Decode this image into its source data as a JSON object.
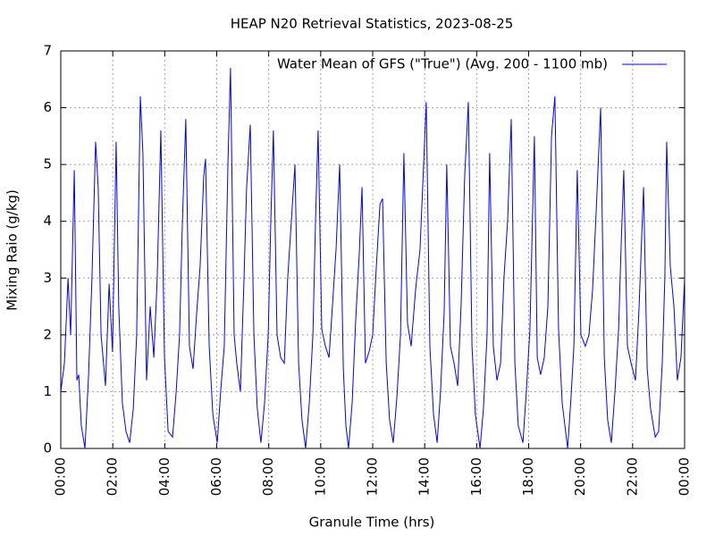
{
  "chart_data": {
    "type": "line",
    "title": "HEAP N20 Retrieval Statistics, 2023-08-25",
    "x_label": "Granule Time (hrs)",
    "y_label": "Mixing Raio (g/kg)",
    "xlim": [
      0,
      24
    ],
    "xticks": [
      {
        "value": 0,
        "label": "00:00"
      },
      {
        "value": 2,
        "label": "02:00"
      },
      {
        "value": 4,
        "label": "04:00"
      },
      {
        "value": 6,
        "label": "06:00"
      },
      {
        "value": 8,
        "label": "08:00"
      },
      {
        "value": 10,
        "label": "10:00"
      },
      {
        "value": 12,
        "label": "12:00"
      },
      {
        "value": 14,
        "label": "14:00"
      },
      {
        "value": 16,
        "label": "16:00"
      },
      {
        "value": 18,
        "label": "18:00"
      },
      {
        "value": 20,
        "label": "20:00"
      },
      {
        "value": 22,
        "label": "22:00"
      },
      {
        "value": 24,
        "label": "00:00"
      }
    ],
    "ylim": [
      0,
      7
    ],
    "yticks": [
      0,
      1,
      2,
      3,
      4,
      5,
      6,
      7
    ],
    "grid": true,
    "legend": "top-right",
    "x": [
      0.0,
      0.14,
      0.28,
      0.38,
      0.52,
      0.62,
      0.69,
      0.79,
      0.93,
      1.07,
      1.2,
      1.34,
      1.44,
      1.55,
      1.72,
      1.86,
      1.99,
      2.13,
      2.23,
      2.37,
      2.51,
      2.65,
      2.79,
      2.92,
      3.06,
      3.16,
      3.3,
      3.44,
      3.58,
      3.71,
      3.85,
      3.99,
      4.13,
      4.3,
      4.44,
      4.57,
      4.68,
      4.81,
      4.95,
      5.09,
      5.23,
      5.36,
      5.5,
      5.57,
      5.71,
      5.85,
      6.02,
      6.15,
      6.29,
      6.43,
      6.53,
      6.67,
      6.77,
      6.91,
      7.05,
      7.15,
      7.29,
      7.43,
      7.56,
      7.7,
      7.84,
      7.98,
      8.08,
      8.18,
      8.32,
      8.46,
      8.6,
      8.73,
      8.87,
      9.01,
      9.15,
      9.28,
      9.42,
      9.56,
      9.7,
      9.8,
      9.9,
      10.04,
      10.18,
      10.32,
      10.45,
      10.59,
      10.73,
      10.87,
      10.97,
      11.07,
      11.21,
      11.35,
      11.48,
      11.59,
      11.72,
      11.86,
      12.0,
      12.14,
      12.28,
      12.38,
      12.52,
      12.65,
      12.79,
      12.93,
      13.07,
      13.2,
      13.34,
      13.48,
      13.65,
      13.82,
      13.96,
      14.06,
      14.2,
      14.34,
      14.48,
      14.61,
      14.75,
      14.85,
      14.99,
      15.13,
      15.27,
      15.4,
      15.54,
      15.68,
      15.82,
      15.95,
      16.13,
      16.26,
      16.4,
      16.5,
      16.64,
      16.78,
      16.92,
      17.05,
      17.19,
      17.33,
      17.47,
      17.6,
      17.78,
      17.91,
      18.05,
      18.22,
      18.33,
      18.46,
      18.6,
      18.74,
      18.88,
      19.01,
      19.15,
      19.29,
      19.5,
      19.63,
      19.74,
      19.87,
      20.01,
      20.18,
      20.32,
      20.46,
      20.6,
      20.77,
      20.91,
      21.04,
      21.18,
      21.32,
      21.46,
      21.56,
      21.66,
      21.8,
      21.94,
      22.11,
      22.25,
      22.42,
      22.56,
      22.69,
      22.87,
      23.0,
      23.14,
      23.24,
      23.31,
      23.45,
      23.59,
      23.72,
      23.86,
      24.0
    ],
    "series": [
      {
        "name": "Water Mean of GFS (\"True\") (Avg. 200 - 1100 mb)",
        "color": "#0000ff",
        "values": [
          1.0,
          1.5,
          3.0,
          2.0,
          4.9,
          1.2,
          1.3,
          0.4,
          0.0,
          1.3,
          3.0,
          5.4,
          4.6,
          2.0,
          1.1,
          2.9,
          1.7,
          5.4,
          2.5,
          0.8,
          0.3,
          0.1,
          0.7,
          2.0,
          6.2,
          5.2,
          1.2,
          2.5,
          1.6,
          3.0,
          5.6,
          1.6,
          0.3,
          0.2,
          1.0,
          2.0,
          4.0,
          5.8,
          1.8,
          1.4,
          2.4,
          3.2,
          4.8,
          5.1,
          1.8,
          0.6,
          0.1,
          1.0,
          1.8,
          5.0,
          6.7,
          2.0,
          1.5,
          1.0,
          3.0,
          4.6,
          5.7,
          2.0,
          0.7,
          0.1,
          0.8,
          2.0,
          4.0,
          5.6,
          2.0,
          1.6,
          1.5,
          3.0,
          4.0,
          5.0,
          1.5,
          0.5,
          0.0,
          0.8,
          2.0,
          4.0,
          5.6,
          2.1,
          1.8,
          1.6,
          2.5,
          3.5,
          5.0,
          1.4,
          0.4,
          0.0,
          0.8,
          2.3,
          3.4,
          4.6,
          1.5,
          1.7,
          2.0,
          3.2,
          4.3,
          4.4,
          1.5,
          0.5,
          0.1,
          0.9,
          2.0,
          5.2,
          2.2,
          1.8,
          2.8,
          3.5,
          5.0,
          6.1,
          1.8,
          0.6,
          0.1,
          1.0,
          2.4,
          5.0,
          1.8,
          1.5,
          1.1,
          2.5,
          4.8,
          6.1,
          1.8,
          0.6,
          0.0,
          0.7,
          2.0,
          5.2,
          1.8,
          1.2,
          1.5,
          3.0,
          4.0,
          5.8,
          1.5,
          0.4,
          0.1,
          1.0,
          2.1,
          5.5,
          1.6,
          1.3,
          1.6,
          2.5,
          5.5,
          6.2,
          2.1,
          0.8,
          0.0,
          0.9,
          1.8,
          4.9,
          2.0,
          1.8,
          2.0,
          2.8,
          4.2,
          6.0,
          1.6,
          0.5,
          0.1,
          1.0,
          2.1,
          3.6,
          4.9,
          1.8,
          1.5,
          1.2,
          2.5,
          4.6,
          1.4,
          0.7,
          0.2,
          0.3,
          1.5,
          3.0,
          5.4,
          3.2,
          2.5,
          1.2,
          1.6,
          3.0
        ]
      }
    ]
  }
}
